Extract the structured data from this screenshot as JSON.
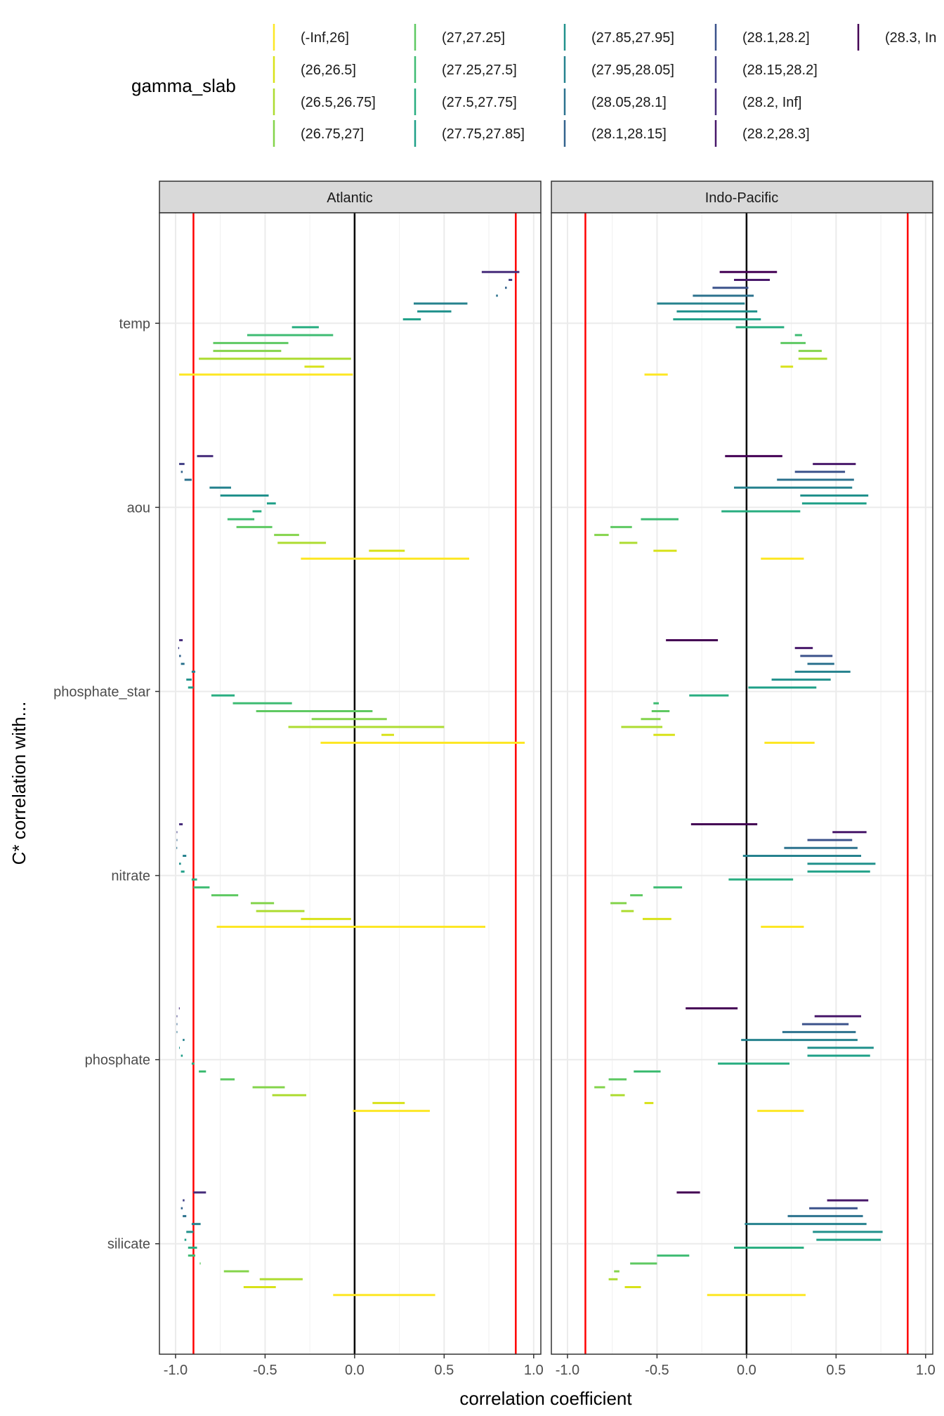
{
  "chart_data": {
    "type": "segment",
    "xlabel": "correlation coefficient",
    "ylabel": "C* correlation with...",
    "xlim": [
      -1.09,
      1.04
    ],
    "xticks": [
      -1.0,
      -0.5,
      0.0,
      0.5,
      1.0
    ],
    "xtick_labels": [
      "-1.0",
      "-0.5",
      "0.0",
      "0.5",
      "1.0"
    ],
    "grid": true,
    "reference_lines": {
      "zero": {
        "x": 0.0,
        "color": "#000000"
      },
      "thresholds": {
        "x": [
          -0.9,
          0.9
        ],
        "color": "#FF0000"
      }
    },
    "categories": [
      "temp",
      "aou",
      "phosphate_star",
      "nitrate",
      "phosphate",
      "silicate"
    ],
    "legend": {
      "title": "gamma_slab",
      "position": "top",
      "entries": [
        {
          "label": "(-Inf,26]",
          "color": "#FDE725"
        },
        {
          "label": "(26,26.5]",
          "color": "#D8E219"
        },
        {
          "label": "(26.5,26.75]",
          "color": "#ADDC30"
        },
        {
          "label": "(26.75,27]",
          "color": "#84D44B"
        },
        {
          "label": "(27,27.25]",
          "color": "#5EC962"
        },
        {
          "label": "(27.25,27.5]",
          "color": "#3FBC73"
        },
        {
          "label": "(27.5,27.75]",
          "color": "#28AE80"
        },
        {
          "label": "(27.75,27.85]",
          "color": "#1FA088"
        },
        {
          "label": "(27.85,27.95]",
          "color": "#21918C"
        },
        {
          "label": "(27.95,28.05]",
          "color": "#26828E"
        },
        {
          "label": "(28.05,28.1]",
          "color": "#2C728E"
        },
        {
          "label": "(28.1,28.15]",
          "color": "#33638D"
        },
        {
          "label": "(28.1,28.2]",
          "color": "#3B528B"
        },
        {
          "label": "(28.15,28.2]",
          "color": "#424086"
        },
        {
          "label": "(28.2, Inf]",
          "color": "#472D7B"
        },
        {
          "label": "(28.2,28.3]",
          "color": "#48186A"
        },
        {
          "label": "(28.3, In",
          "color": "#440154"
        }
      ]
    },
    "panels": [
      {
        "title": "Atlantic",
        "slabs": [
          "(28.2, Inf]",
          "(28.15,28.2]",
          "(28.1,28.15]",
          "(28.05,28.1]",
          "(27.95,28.05]",
          "(27.85,27.95]",
          "(27.75,27.85]",
          "(27.5,27.75]",
          "(27.25,27.5]",
          "(27,27.25]",
          "(26.75,27]",
          "(26.5,26.75]",
          "(26,26.5]",
          "(-Inf,26]"
        ],
        "ranges": {
          "temp": [
            [
              0.71,
              0.92
            ],
            [
              0.86,
              0.88
            ],
            [
              0.84,
              0.85
            ],
            [
              0.79,
              0.8
            ],
            [
              0.33,
              0.63
            ],
            [
              0.35,
              0.54
            ],
            [
              0.27,
              0.37
            ],
            [
              -0.35,
              -0.2
            ],
            [
              -0.6,
              -0.12
            ],
            [
              -0.79,
              -0.37
            ],
            [
              -0.79,
              -0.41
            ],
            [
              -0.87,
              -0.02
            ],
            [
              -0.28,
              -0.17
            ],
            [
              -0.98,
              -0.01
            ]
          ],
          "aou": [
            [
              -0.88,
              -0.79
            ],
            [
              -0.98,
              -0.95
            ],
            [
              -0.97,
              -0.96
            ],
            [
              -0.95,
              -0.91
            ],
            [
              -0.81,
              -0.69
            ],
            [
              -0.75,
              -0.48
            ],
            [
              -0.49,
              -0.44
            ],
            [
              -0.57,
              -0.52
            ],
            [
              -0.71,
              -0.56
            ],
            [
              -0.66,
              -0.46
            ],
            [
              -0.45,
              -0.31
            ],
            [
              -0.43,
              -0.16
            ],
            [
              0.08,
              0.28
            ],
            [
              -0.3,
              0.64
            ]
          ],
          "phosphate_star": [
            [
              -0.98,
              -0.96
            ],
            [
              -0.985,
              -0.98
            ],
            [
              -0.98,
              -0.97
            ],
            [
              -0.97,
              -0.95
            ],
            [
              -0.91,
              -0.89
            ],
            [
              -0.94,
              -0.91
            ],
            [
              -0.93,
              -0.9
            ],
            [
              -0.8,
              -0.67
            ],
            [
              -0.68,
              -0.35
            ],
            [
              -0.55,
              0.1
            ],
            [
              -0.24,
              0.18
            ],
            [
              -0.37,
              0.5
            ],
            [
              0.15,
              0.22
            ],
            [
              -0.19,
              0.95
            ]
          ],
          "nitrate": [
            [
              -0.98,
              -0.96
            ],
            [
              -0.994,
              -0.991
            ],
            [
              -0.994,
              -0.991
            ],
            [
              -0.995,
              -0.991
            ],
            [
              -0.96,
              -0.94
            ],
            [
              -0.98,
              -0.97
            ],
            [
              -0.97,
              -0.95
            ],
            [
              -0.91,
              -0.88
            ],
            [
              -0.9,
              -0.81
            ],
            [
              -0.8,
              -0.65
            ],
            [
              -0.58,
              -0.45
            ],
            [
              -0.55,
              -0.28
            ],
            [
              -0.3,
              -0.02
            ],
            [
              -0.77,
              0.73
            ]
          ],
          "phosphate": [
            [
              -0.981,
              -0.978
            ],
            [
              -0.994,
              -0.991
            ],
            [
              -0.994,
              -0.991
            ],
            [
              -0.994,
              -0.991
            ],
            [
              -0.96,
              -0.95
            ],
            [
              -0.98,
              -0.977
            ],
            [
              -0.97,
              -0.96
            ],
            [
              -0.91,
              -0.895
            ],
            [
              -0.87,
              -0.83
            ],
            [
              -0.75,
              -0.67
            ],
            [
              -0.57,
              -0.39
            ],
            [
              -0.46,
              -0.27
            ],
            [
              0.1,
              0.28
            ],
            [
              -0.01,
              0.42
            ]
          ],
          "silicate": [
            [
              -0.9,
              -0.83
            ],
            [
              -0.96,
              -0.95
            ],
            [
              -0.97,
              -0.96
            ],
            [
              -0.96,
              -0.94
            ],
            [
              -0.91,
              -0.86
            ],
            [
              -0.94,
              -0.9
            ],
            [
              -0.95,
              -0.94
            ],
            [
              -0.93,
              -0.88
            ],
            [
              -0.93,
              -0.89
            ],
            [
              -0.865,
              -0.86
            ],
            [
              -0.73,
              -0.59
            ],
            [
              -0.53,
              -0.29
            ],
            [
              -0.62,
              -0.44
            ],
            [
              -0.12,
              0.45
            ]
          ]
        }
      },
      {
        "title": "Indo-Pacific",
        "slabs": [
          "(28.3, In",
          "(28.2,28.3]",
          "(28.1,28.2]",
          "(28.05,28.1]",
          "(27.95,28.05]",
          "(27.85,27.95]",
          "(27.75,27.85]",
          "(27.5,27.75]",
          "(27.25,27.5]",
          "(27,27.25]",
          "(26.75,27]",
          "(26.5,26.75]",
          "(26,26.5]",
          "(-Inf,26]"
        ],
        "ranges": {
          "temp": [
            [
              -0.15,
              0.17
            ],
            [
              -0.07,
              0.13
            ],
            [
              -0.19,
              0.01
            ],
            [
              -0.3,
              0.04
            ],
            [
              -0.5,
              -0.01
            ],
            [
              -0.39,
              0.06
            ],
            [
              -0.41,
              0.08
            ],
            [
              -0.06,
              0.21
            ],
            [
              0.27,
              0.31
            ],
            [
              0.19,
              0.33
            ],
            [
              0.29,
              0.42
            ],
            [
              0.29,
              0.45
            ],
            [
              0.19,
              0.26
            ],
            [
              -0.57,
              -0.44
            ]
          ],
          "aou": [
            [
              -0.12,
              0.2
            ],
            [
              0.37,
              0.61
            ],
            [
              0.27,
              0.55
            ],
            [
              0.17,
              0.6
            ],
            [
              -0.07,
              0.59
            ],
            [
              0.3,
              0.68
            ],
            [
              0.31,
              0.67
            ],
            [
              -0.14,
              0.3
            ],
            [
              -0.59,
              -0.38
            ],
            [
              -0.76,
              -0.64
            ],
            [
              -0.85,
              -0.77
            ],
            [
              -0.71,
              -0.61
            ],
            [
              -0.52,
              -0.39
            ],
            [
              0.08,
              0.32
            ]
          ],
          "phosphate_star": [
            [
              -0.45,
              -0.16
            ],
            [
              0.27,
              0.37
            ],
            [
              0.3,
              0.48
            ],
            [
              0.34,
              0.49
            ],
            [
              0.27,
              0.58
            ],
            [
              0.14,
              0.47
            ],
            [
              0.01,
              0.39
            ],
            [
              -0.32,
              -0.1
            ],
            [
              -0.52,
              -0.49
            ],
            [
              -0.53,
              -0.43
            ],
            [
              -0.59,
              -0.48
            ],
            [
              -0.7,
              -0.47
            ],
            [
              -0.52,
              -0.4
            ],
            [
              0.1,
              0.38
            ]
          ],
          "nitrate": [
            [
              -0.31,
              0.06
            ],
            [
              0.48,
              0.67
            ],
            [
              0.34,
              0.59
            ],
            [
              0.21,
              0.62
            ],
            [
              -0.02,
              0.64
            ],
            [
              0.34,
              0.72
            ],
            [
              0.34,
              0.69
            ],
            [
              -0.1,
              0.26
            ],
            [
              -0.52,
              -0.36
            ],
            [
              -0.65,
              -0.58
            ],
            [
              -0.76,
              -0.67
            ],
            [
              -0.7,
              -0.63
            ],
            [
              -0.58,
              -0.42
            ],
            [
              0.08,
              0.32
            ]
          ],
          "phosphate": [
            [
              -0.34,
              -0.05
            ],
            [
              0.38,
              0.64
            ],
            [
              0.31,
              0.57
            ],
            [
              0.2,
              0.61
            ],
            [
              -0.03,
              0.62
            ],
            [
              0.34,
              0.71
            ],
            [
              0.34,
              0.69
            ],
            [
              -0.16,
              0.24
            ],
            [
              -0.63,
              -0.48
            ],
            [
              -0.77,
              -0.67
            ],
            [
              -0.85,
              -0.79
            ],
            [
              -0.76,
              -0.68
            ],
            [
              -0.57,
              -0.52
            ],
            [
              0.06,
              0.32
            ]
          ],
          "silicate": [
            [
              -0.39,
              -0.26
            ],
            [
              0.45,
              0.68
            ],
            [
              0.35,
              0.62
            ],
            [
              0.23,
              0.65
            ],
            [
              -0.01,
              0.67
            ],
            [
              0.37,
              0.76
            ],
            [
              0.39,
              0.75
            ],
            [
              -0.07,
              0.32
            ],
            [
              -0.5,
              -0.32
            ],
            [
              -0.65,
              -0.5
            ],
            [
              -0.74,
              -0.71
            ],
            [
              -0.77,
              -0.72
            ],
            [
              -0.68,
              -0.59
            ],
            [
              -0.22,
              0.33
            ]
          ]
        }
      }
    ]
  }
}
